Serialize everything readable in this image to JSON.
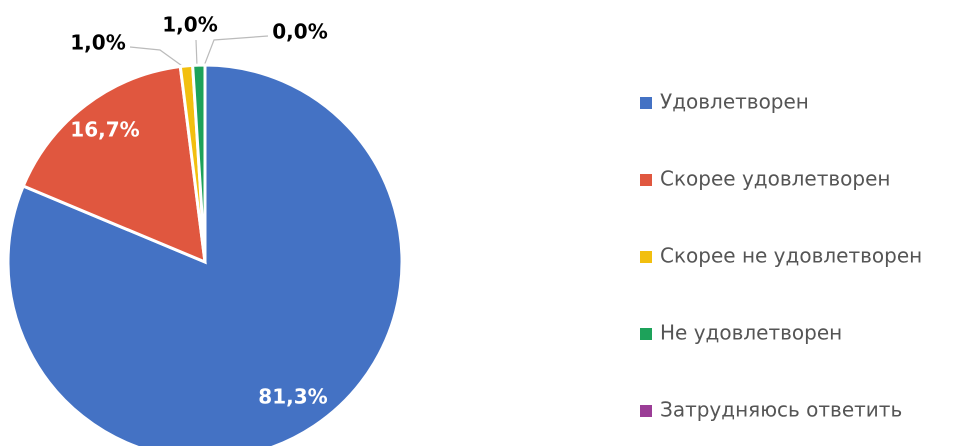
{
  "chart_data": {
    "type": "pie",
    "categories": [
      "Удовлетворен",
      "Скорее удовлетворен",
      "Скорее не удовлетворен",
      "Не удовлетворен",
      "Затрудняюсь ответить"
    ],
    "values": [
      81.3,
      16.7,
      1.0,
      1.0,
      0.0
    ],
    "value_labels": [
      "81,3%",
      "16,7%",
      "1,0%",
      "1,0%",
      "0,0%"
    ],
    "colors": [
      "#4472c4",
      "#e0573f",
      "#f2bf0f",
      "#1da25a",
      "#9b3d96"
    ],
    "legend": "right"
  }
}
